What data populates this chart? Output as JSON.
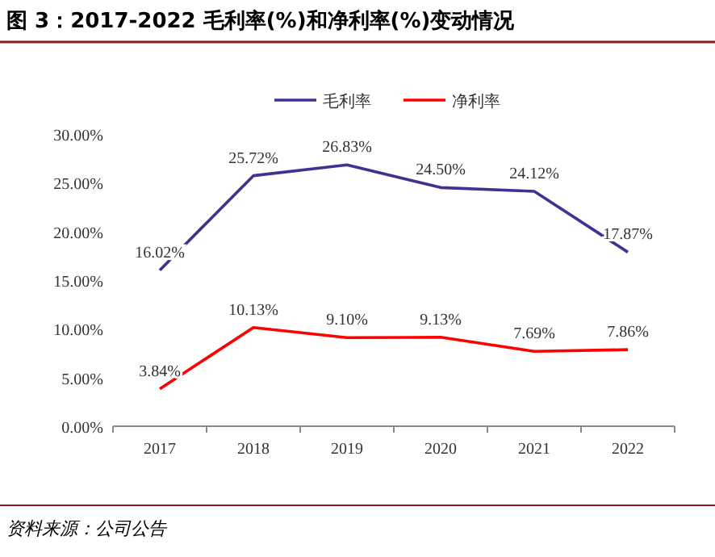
{
  "chart_data": {
    "type": "line",
    "title": "图 3：2017-2022 毛利率(%)和净利率(%)变动情况",
    "categories": [
      "2017",
      "2018",
      "2019",
      "2020",
      "2021",
      "2022"
    ],
    "series": [
      {
        "name": "毛利率",
        "color": "#3d3393",
        "values": [
          16.02,
          25.72,
          26.83,
          24.5,
          24.12,
          17.87
        ],
        "value_labels": [
          "16.02%",
          "25.72%",
          "26.83%",
          "24.50%",
          "24.12%",
          "17.87%"
        ]
      },
      {
        "name": "净利率",
        "color": "#ff0000",
        "values": [
          3.84,
          10.13,
          9.1,
          9.13,
          7.69,
          7.86
        ],
        "value_labels": [
          "3.84%",
          "10.13%",
          "9.10%",
          "9.13%",
          "7.69%",
          "7.86%"
        ]
      }
    ],
    "ylim": [
      0,
      30
    ],
    "yticks": [
      {
        "value": 0,
        "label": "0.00%"
      },
      {
        "value": 5,
        "label": "5.00%"
      },
      {
        "value": 10,
        "label": "10.00%"
      },
      {
        "value": 15,
        "label": "15.00%"
      },
      {
        "value": 20,
        "label": "20.00%"
      },
      {
        "value": 25,
        "label": "25.00%"
      },
      {
        "value": 30,
        "label": "30.00%"
      }
    ],
    "legend": "top",
    "grid": false,
    "marker": "none",
    "line_style": "solid",
    "annotations": [
      "资料来源：公司公告"
    ]
  }
}
